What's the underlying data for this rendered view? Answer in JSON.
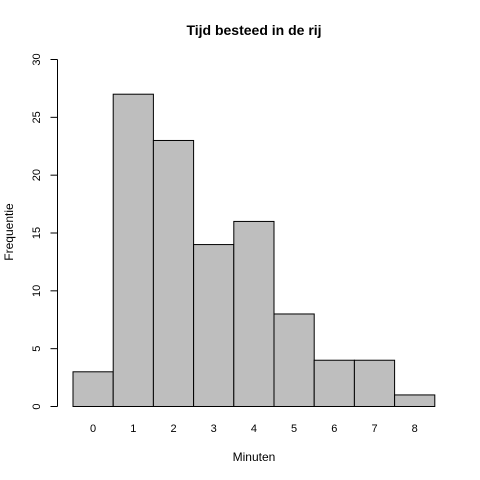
{
  "chart_data": {
    "type": "bar",
    "title": "Tijd besteed in de rij",
    "xlabel": "Minuten",
    "ylabel": "Frequentie",
    "categories": [
      "0",
      "1",
      "2",
      "3",
      "4",
      "5",
      "6",
      "7",
      "8"
    ],
    "values": [
      3,
      27,
      23,
      14,
      16,
      8,
      4,
      4,
      1
    ],
    "ylim": [
      0,
      30
    ],
    "yticks": [
      "0",
      "5",
      "10",
      "15",
      "20",
      "25",
      "30"
    ],
    "bar_color": "#bebebe",
    "grid": false,
    "legend": "none"
  }
}
